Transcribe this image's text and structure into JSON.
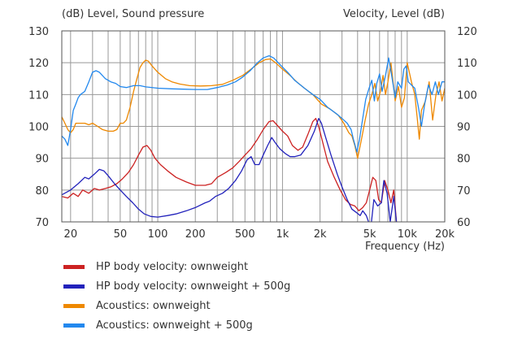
{
  "chart_data": {
    "type": "line",
    "title_left": "(dB)  Level, Sound pressure",
    "title_right": "Velocity, Level  (dB)",
    "xlabel": "Frequency  (Hz)",
    "x_scale": "log",
    "xlim": [
      17,
      20000
    ],
    "ylim_left": [
      70,
      130
    ],
    "ylim_right": [
      60,
      120
    ],
    "x_ticks": [
      20,
      50,
      100,
      200,
      500,
      1000,
      2000,
      5000,
      10000,
      20000
    ],
    "x_tick_labels": [
      "20",
      "50",
      "100",
      "200",
      "500",
      "1k",
      "2k",
      "5k",
      "10k",
      "20k"
    ],
    "y_left_ticks": [
      70,
      80,
      90,
      100,
      110,
      120,
      130
    ],
    "y_right_ticks": [
      60,
      70,
      80,
      90,
      100,
      110,
      120
    ],
    "grid": true,
    "legend_position": "bottom",
    "series": [
      {
        "name": "HP body velocity: ownweight",
        "color": "#cc2222",
        "axis": "left",
        "points": [
          [
            17,
            78
          ],
          [
            19,
            77.5
          ],
          [
            21,
            79
          ],
          [
            23,
            78
          ],
          [
            25,
            80
          ],
          [
            28,
            79
          ],
          [
            31,
            80.5
          ],
          [
            34,
            80
          ],
          [
            38,
            80.5
          ],
          [
            42,
            81
          ],
          [
            47,
            82
          ],
          [
            52,
            83.5
          ],
          [
            58,
            85.5
          ],
          [
            64,
            88
          ],
          [
            70,
            91
          ],
          [
            76,
            93.5
          ],
          [
            82,
            94
          ],
          [
            88,
            92.5
          ],
          [
            95,
            90
          ],
          [
            105,
            88
          ],
          [
            120,
            86
          ],
          [
            140,
            84
          ],
          [
            170,
            82.5
          ],
          [
            200,
            81.5
          ],
          [
            240,
            81.5
          ],
          [
            270,
            82
          ],
          [
            300,
            84
          ],
          [
            350,
            85.5
          ],
          [
            400,
            87
          ],
          [
            450,
            89
          ],
          [
            500,
            91
          ],
          [
            560,
            93
          ],
          [
            630,
            96
          ],
          [
            700,
            99
          ],
          [
            780,
            101.5
          ],
          [
            840,
            101.8
          ],
          [
            900,
            100.5
          ],
          [
            1000,
            98.5
          ],
          [
            1100,
            97
          ],
          [
            1200,
            94
          ],
          [
            1330,
            92.5
          ],
          [
            1450,
            93.5
          ],
          [
            1600,
            97.5
          ],
          [
            1750,
            101.5
          ],
          [
            1850,
            102.5
          ],
          [
            1950,
            100
          ],
          [
            2100,
            95
          ],
          [
            2300,
            89
          ],
          [
            2600,
            84
          ],
          [
            2900,
            80
          ],
          [
            3200,
            77
          ],
          [
            3500,
            75.5
          ],
          [
            3800,
            75
          ],
          [
            4100,
            73.5
          ],
          [
            4400,
            74.5
          ],
          [
            4700,
            76
          ],
          [
            5000,
            80
          ],
          [
            5300,
            84
          ],
          [
            5600,
            83
          ],
          [
            5900,
            77
          ],
          [
            6200,
            76
          ],
          [
            6600,
            83
          ],
          [
            7000,
            80
          ],
          [
            7400,
            76
          ],
          [
            7800,
            80
          ],
          [
            8200,
            70
          ]
        ]
      },
      {
        "name": "HP body velocity: ownweight + 500g",
        "color": "#2222bb",
        "axis": "left",
        "points": [
          [
            17,
            78.5
          ],
          [
            20,
            80
          ],
          [
            23,
            82
          ],
          [
            26,
            84
          ],
          [
            28,
            83.5
          ],
          [
            31,
            85
          ],
          [
            34,
            86.5
          ],
          [
            37,
            86
          ],
          [
            40,
            84.5
          ],
          [
            45,
            82
          ],
          [
            50,
            80
          ],
          [
            56,
            78
          ],
          [
            63,
            76
          ],
          [
            70,
            74
          ],
          [
            78,
            72.5
          ],
          [
            88,
            71.7
          ],
          [
            100,
            71.5
          ],
          [
            120,
            72
          ],
          [
            140,
            72.5
          ],
          [
            170,
            73.5
          ],
          [
            200,
            74.5
          ],
          [
            240,
            76
          ],
          [
            260,
            76.5
          ],
          [
            290,
            78
          ],
          [
            330,
            79
          ],
          [
            370,
            80.5
          ],
          [
            420,
            83
          ],
          [
            470,
            86
          ],
          [
            520,
            89.5
          ],
          [
            560,
            90.5
          ],
          [
            600,
            88
          ],
          [
            650,
            88
          ],
          [
            700,
            91
          ],
          [
            760,
            94
          ],
          [
            820,
            96.5
          ],
          [
            870,
            95
          ],
          [
            950,
            93
          ],
          [
            1050,
            91.5
          ],
          [
            1150,
            90.5
          ],
          [
            1250,
            90.5
          ],
          [
            1400,
            91
          ],
          [
            1600,
            94
          ],
          [
            1800,
            98.5
          ],
          [
            1950,
            102.5
          ],
          [
            2050,
            101
          ],
          [
            2200,
            97
          ],
          [
            2450,
            91
          ],
          [
            2750,
            85
          ],
          [
            3000,
            81
          ],
          [
            3300,
            77
          ],
          [
            3600,
            74
          ],
          [
            3900,
            73
          ],
          [
            4200,
            72
          ],
          [
            4400,
            73.5
          ],
          [
            4700,
            72
          ],
          [
            4900,
            70
          ],
          [
            5100,
            68
          ],
          [
            5400,
            77
          ],
          [
            5800,
            75
          ],
          [
            6200,
            76
          ],
          [
            6500,
            83
          ],
          [
            6900,
            79
          ],
          [
            7300,
            70
          ],
          [
            7800,
            78
          ],
          [
            8200,
            70
          ],
          [
            8500,
            66
          ]
        ]
      },
      {
        "name": "Acoustics: ownweight",
        "color": "#ee8800",
        "axis": "right",
        "points": [
          [
            17,
            93
          ],
          [
            18,
            91
          ],
          [
            19,
            89
          ],
          [
            20,
            88
          ],
          [
            21,
            89
          ],
          [
            22,
            91
          ],
          [
            24,
            91
          ],
          [
            26,
            91
          ],
          [
            28,
            90.5
          ],
          [
            30,
            91
          ],
          [
            33,
            90
          ],
          [
            36,
            89
          ],
          [
            40,
            88.5
          ],
          [
            44,
            88.5
          ],
          [
            47,
            89
          ],
          [
            50,
            91
          ],
          [
            53,
            91
          ],
          [
            56,
            92
          ],
          [
            60,
            96
          ],
          [
            64,
            101
          ],
          [
            68,
            105
          ],
          [
            72,
            108.5
          ],
          [
            76,
            110
          ],
          [
            80,
            110.8
          ],
          [
            84,
            110.5
          ],
          [
            90,
            109
          ],
          [
            100,
            107
          ],
          [
            115,
            105
          ],
          [
            130,
            104
          ],
          [
            150,
            103.3
          ],
          [
            180,
            102.8
          ],
          [
            220,
            102.7
          ],
          [
            270,
            102.8
          ],
          [
            330,
            103.2
          ],
          [
            400,
            104.5
          ],
          [
            480,
            106
          ],
          [
            560,
            108
          ],
          [
            650,
            110
          ],
          [
            730,
            111
          ],
          [
            800,
            111.2
          ],
          [
            880,
            110
          ],
          [
            1000,
            108
          ],
          [
            1150,
            106
          ],
          [
            1300,
            104
          ],
          [
            1500,
            102
          ],
          [
            1750,
            100
          ],
          [
            2050,
            97
          ],
          [
            2400,
            95.5
          ],
          [
            2800,
            93.5
          ],
          [
            3100,
            91
          ],
          [
            3400,
            88
          ],
          [
            3600,
            87
          ],
          [
            3800,
            84
          ],
          [
            4000,
            80
          ],
          [
            4300,
            86
          ],
          [
            4600,
            92
          ],
          [
            4900,
            97
          ],
          [
            5200,
            100
          ],
          [
            5500,
            103.5
          ],
          [
            5800,
            98
          ],
          [
            6100,
            101
          ],
          [
            6400,
            106
          ],
          [
            6700,
            100
          ],
          [
            7000,
            104
          ],
          [
            7400,
            110
          ],
          [
            7700,
            104
          ],
          [
            8000,
            98
          ],
          [
            8500,
            102.5
          ],
          [
            9000,
            96
          ],
          [
            9500,
            99
          ],
          [
            10000,
            110
          ],
          [
            10800,
            104
          ],
          [
            11500,
            100
          ],
          [
            12000,
            93
          ],
          [
            12500,
            86
          ],
          [
            13000,
            95
          ],
          [
            14000,
            98
          ],
          [
            15000,
            104
          ],
          [
            16000,
            92
          ],
          [
            17000,
            100
          ],
          [
            18000,
            104
          ],
          [
            19000,
            98
          ],
          [
            20000,
            102
          ]
        ]
      },
      {
        "name": "Acoustics: ownweight + 500g",
        "color": "#2288ee",
        "axis": "right",
        "points": [
          [
            17,
            87
          ],
          [
            18,
            86
          ],
          [
            19,
            84
          ],
          [
            20,
            89
          ],
          [
            21,
            95
          ],
          [
            22,
            97
          ],
          [
            23,
            99
          ],
          [
            24,
            100
          ],
          [
            26,
            101
          ],
          [
            28,
            104
          ],
          [
            30,
            107
          ],
          [
            32,
            107.5
          ],
          [
            34,
            107
          ],
          [
            38,
            105
          ],
          [
            42,
            104
          ],
          [
            46,
            103.5
          ],
          [
            50,
            102.5
          ],
          [
            56,
            102.2
          ],
          [
            64,
            102.8
          ],
          [
            72,
            102.8
          ],
          [
            80,
            102.4
          ],
          [
            100,
            102
          ],
          [
            130,
            101.8
          ],
          [
            160,
            101.7
          ],
          [
            200,
            101.6
          ],
          [
            250,
            101.6
          ],
          [
            300,
            102.2
          ],
          [
            360,
            103
          ],
          [
            420,
            104
          ],
          [
            480,
            105.5
          ],
          [
            550,
            107.5
          ],
          [
            630,
            110
          ],
          [
            700,
            111.5
          ],
          [
            780,
            112.2
          ],
          [
            850,
            111.5
          ],
          [
            950,
            109.5
          ],
          [
            1100,
            107
          ],
          [
            1250,
            104.5
          ],
          [
            1500,
            102
          ],
          [
            1750,
            100
          ],
          [
            2000,
            98.5
          ],
          [
            2300,
            96
          ],
          [
            2700,
            94
          ],
          [
            3000,
            92.5
          ],
          [
            3300,
            91
          ],
          [
            3550,
            89
          ],
          [
            3700,
            86
          ],
          [
            3950,
            82
          ],
          [
            4150,
            86
          ],
          [
            4400,
            92.5
          ],
          [
            4650,
            98.5
          ],
          [
            4900,
            101.5
          ],
          [
            5200,
            104.5
          ],
          [
            5450,
            98
          ],
          [
            5700,
            103.5
          ],
          [
            6000,
            106.5
          ],
          [
            6300,
            101
          ],
          [
            6700,
            106
          ],
          [
            7100,
            111.5
          ],
          [
            7500,
            106
          ],
          [
            8000,
            99
          ],
          [
            8400,
            104
          ],
          [
            9000,
            102
          ],
          [
            9400,
            108
          ],
          [
            9800,
            109
          ],
          [
            10200,
            104
          ],
          [
            10800,
            103
          ],
          [
            11500,
            102
          ],
          [
            12300,
            96
          ],
          [
            13000,
            90
          ],
          [
            13800,
            97
          ],
          [
            14800,
            103
          ],
          [
            15800,
            100
          ],
          [
            16800,
            104
          ],
          [
            17800,
            100
          ],
          [
            19000,
            104
          ],
          [
            20000,
            104
          ]
        ]
      }
    ]
  }
}
